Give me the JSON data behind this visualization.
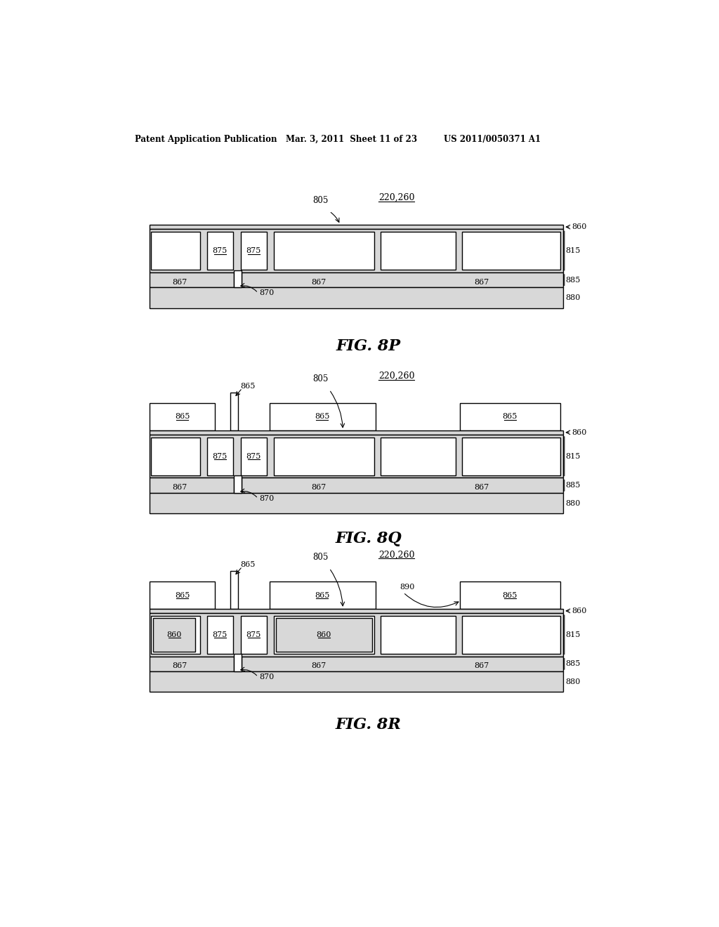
{
  "header_left": "Patent Application Publication",
  "header_mid": "Mar. 3, 2011  Sheet 11 of 23",
  "header_right": "US 2011/0050371 A1",
  "fig8p_label": "FIG. 8P",
  "fig8q_label": "FIG. 8Q",
  "fig8r_label": "FIG. 8R",
  "bg_color": "#ffffff",
  "lc": "#000000",
  "layer_gray": "#d8d8d8",
  "substrate_gray": "#c8c8c8",
  "box_white": "#ffffff",
  "box_light": "#e8e8e8"
}
